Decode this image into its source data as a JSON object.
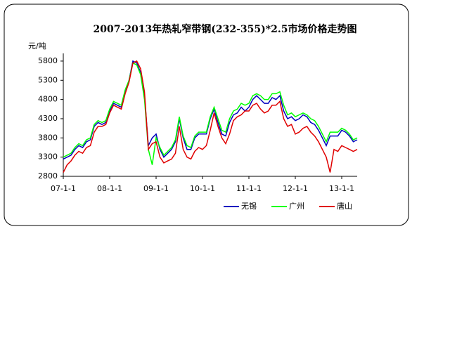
{
  "chart_data": {
    "type": "line",
    "title": "2007-2013年热轧窄带钢(232-355)*2.5市场价格走势图",
    "y_label": "元/吨",
    "categories": [
      "07-1-1",
      null,
      null,
      null,
      null,
      null,
      null,
      null,
      null,
      null,
      null,
      null,
      "08-1-1",
      null,
      null,
      null,
      null,
      null,
      null,
      null,
      null,
      null,
      null,
      null,
      "09-1-1",
      null,
      null,
      null,
      null,
      null,
      null,
      null,
      null,
      null,
      null,
      null,
      "10-1-1",
      null,
      null,
      null,
      null,
      null,
      null,
      null,
      null,
      null,
      null,
      null,
      "11-1-1",
      null,
      null,
      null,
      null,
      null,
      null,
      null,
      null,
      null,
      null,
      null,
      "12-1-1",
      null,
      null,
      null,
      null,
      null,
      null,
      null,
      null,
      null,
      null,
      null,
      "13-1-1",
      null,
      null,
      null,
      null
    ],
    "series": [
      {
        "name": "无锡",
        "color": "#0000c0",
        "values": [
          3250,
          3300,
          3350,
          3500,
          3600,
          3550,
          3700,
          3750,
          4100,
          4200,
          4150,
          4200,
          4500,
          4700,
          4650,
          4600,
          5000,
          5300,
          5800,
          5750,
          5500,
          4900,
          3600,
          3800,
          3900,
          3500,
          3300,
          3400,
          3500,
          3700,
          4300,
          3800,
          3500,
          3500,
          3800,
          3900,
          3900,
          3900,
          4300,
          4550,
          4200,
          3900,
          3850,
          4200,
          4400,
          4450,
          4600,
          4500,
          4600,
          4800,
          4900,
          4800,
          4700,
          4700,
          4850,
          4800,
          4900,
          4500,
          4300,
          4350,
          4250,
          4300,
          4400,
          4350,
          4200,
          4150,
          4000,
          3800,
          3600,
          3850,
          3850,
          3850,
          4000,
          3950,
          3850,
          3700,
          3750
        ]
      },
      {
        "name": "广州",
        "color": "#00ff00",
        "values": [
          3300,
          3350,
          3400,
          3550,
          3650,
          3600,
          3750,
          3800,
          4150,
          4250,
          4200,
          4250,
          4550,
          4750,
          4700,
          4650,
          5050,
          5300,
          5750,
          5700,
          5450,
          4800,
          3500,
          3100,
          3800,
          3550,
          3350,
          3450,
          3550,
          3750,
          4350,
          3850,
          3600,
          3550,
          3850,
          3950,
          3950,
          3950,
          4350,
          4600,
          4300,
          4000,
          3950,
          4300,
          4500,
          4550,
          4700,
          4650,
          4700,
          4900,
          4950,
          4900,
          4800,
          4800,
          4950,
          4950,
          5000,
          4650,
          4400,
          4450,
          4350,
          4400,
          4450,
          4400,
          4300,
          4250,
          4100,
          3900,
          3700,
          3950,
          3950,
          3950,
          4050,
          4000,
          3900,
          3750,
          3800
        ]
      },
      {
        "name": "唐山",
        "color": "#e00000",
        "values": [
          2900,
          3100,
          3200,
          3350,
          3450,
          3400,
          3550,
          3600,
          3950,
          4100,
          4100,
          4150,
          4450,
          4650,
          4600,
          4550,
          4950,
          5250,
          5750,
          5800,
          5600,
          5000,
          3500,
          3650,
          3700,
          3300,
          3150,
          3200,
          3250,
          3400,
          4100,
          3500,
          3300,
          3250,
          3450,
          3550,
          3500,
          3600,
          4000,
          4450,
          4100,
          3800,
          3650,
          3900,
          4250,
          4350,
          4400,
          4500,
          4500,
          4650,
          4700,
          4550,
          4450,
          4500,
          4650,
          4650,
          4750,
          4300,
          4100,
          4150,
          3900,
          3950,
          4050,
          4100,
          3950,
          3850,
          3700,
          3500,
          3300,
          2900,
          3500,
          3450,
          3600,
          3550,
          3500,
          3450,
          3500
        ]
      }
    ],
    "ylim": [
      2800,
      6000
    ],
    "yticks": [
      2800,
      3300,
      3800,
      4300,
      4800,
      5300,
      5800
    ],
    "grid": false,
    "legend": "bottom"
  }
}
